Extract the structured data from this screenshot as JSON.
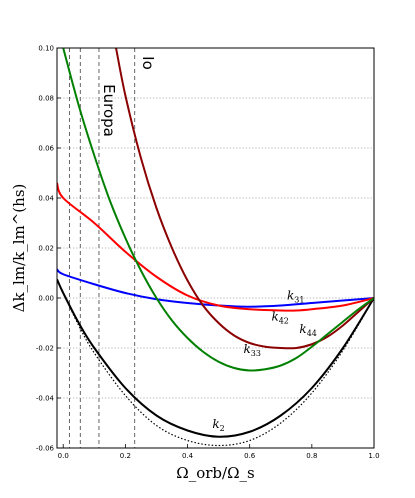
{
  "chart_data": {
    "type": "line",
    "xlabel": "Ω_orb/Ω_s",
    "ylabel": "Δk_lm/k_lm^(hs)",
    "xlim": [
      -0.02,
      1.0
    ],
    "ylim": [
      -0.06,
      0.1
    ],
    "x_ticks": [
      "0.0",
      "0.2",
      "0.4",
      "0.6",
      "0.8",
      "1.0"
    ],
    "y_ticks": [
      "0.10",
      "0.08",
      "0.06",
      "0.04",
      "0.02",
      "0.00",
      "-0.02",
      "-0.04",
      "-0.06"
    ],
    "grid": "horizontal dotted",
    "series": [
      {
        "name": "k2",
        "label_base": "k",
        "label_sub": "2",
        "color": "#000000",
        "style": "solid",
        "x": [
          -0.02,
          0.0,
          0.05,
          0.1,
          0.2,
          0.3,
          0.4,
          0.5,
          0.6,
          0.7,
          0.8,
          0.9,
          1.0
        ],
        "y": [
          0.0075,
          0.002,
          -0.01,
          -0.02,
          -0.036,
          -0.047,
          -0.053,
          -0.0555,
          -0.0535,
          -0.047,
          -0.036,
          -0.02,
          0.0
        ]
      },
      {
        "name": "k2 (dotted)",
        "color": "#000000",
        "style": "dotted",
        "x": [
          -0.02,
          0.0,
          0.05,
          0.1,
          0.2,
          0.3,
          0.4,
          0.5,
          0.6,
          0.7,
          0.8,
          0.9,
          1.0
        ],
        "y": [
          0.0075,
          0.002,
          -0.011,
          -0.022,
          -0.039,
          -0.051,
          -0.057,
          -0.059,
          -0.057,
          -0.05,
          -0.038,
          -0.021,
          0.0
        ]
      },
      {
        "name": "k31",
        "label_base": "k",
        "label_sub": "31",
        "color": "#0000ff",
        "style": "solid",
        "x": [
          -0.02,
          0.0,
          0.1,
          0.2,
          0.3,
          0.4,
          0.5,
          0.6,
          0.7,
          0.8,
          0.9,
          1.0
        ],
        "y": [
          0.0115,
          0.0095,
          0.0055,
          0.002,
          -0.0005,
          -0.002,
          -0.003,
          -0.0035,
          -0.003,
          -0.002,
          -0.001,
          0.0
        ]
      },
      {
        "name": "k42",
        "label_base": "k",
        "label_sub": "42",
        "color": "#ff0000",
        "style": "solid",
        "x": [
          -0.02,
          0.0,
          0.1,
          0.2,
          0.3,
          0.4,
          0.5,
          0.6,
          0.7,
          0.75,
          0.8,
          0.9,
          1.0
        ],
        "y": [
          0.046,
          0.04,
          0.03,
          0.0185,
          0.0085,
          0.001,
          -0.003,
          -0.0045,
          -0.005,
          -0.005,
          -0.0045,
          -0.003,
          0.0
        ]
      },
      {
        "name": "k44",
        "label_base": "k",
        "label_sub": "44",
        "color": "#8b0000",
        "style": "solid",
        "x": [
          0.17,
          0.2,
          0.25,
          0.3,
          0.35,
          0.4,
          0.45,
          0.5,
          0.55,
          0.6,
          0.65,
          0.7,
          0.75,
          0.8,
          0.85,
          0.9,
          0.95,
          1.0
        ],
        "y": [
          0.1,
          0.081,
          0.056,
          0.036,
          0.02,
          0.007,
          -0.003,
          -0.01,
          -0.015,
          -0.018,
          -0.0195,
          -0.02,
          -0.02,
          -0.0185,
          -0.0155,
          -0.011,
          -0.0055,
          0.0
        ]
      },
      {
        "name": "k33",
        "label_base": "k",
        "label_sub": "33",
        "color": "#008000",
        "style": "solid",
        "x": [
          0.0,
          0.05,
          0.1,
          0.15,
          0.2,
          0.25,
          0.3,
          0.35,
          0.4,
          0.45,
          0.5,
          0.55,
          0.6,
          0.65,
          0.7,
          0.75,
          0.8,
          0.85,
          0.9,
          0.95,
          1.0
        ],
        "y": [
          0.1,
          0.077,
          0.057,
          0.039,
          0.024,
          0.011,
          0.0,
          -0.009,
          -0.016,
          -0.0215,
          -0.0255,
          -0.028,
          -0.029,
          -0.0285,
          -0.027,
          -0.024,
          -0.0195,
          -0.0145,
          -0.0095,
          -0.0045,
          0.0
        ]
      }
    ],
    "vlines_x": [
      0.02,
      0.055,
      0.115,
      0.23
    ],
    "annotations": [
      {
        "text": "Europa",
        "x": 0.115,
        "y": 0.075
      },
      {
        "text": "Io",
        "x": 0.24,
        "y": 0.094
      }
    ],
    "label_positions": [
      {
        "series": "k2",
        "x": 0.48,
        "y": -0.052
      },
      {
        "series": "k31",
        "x": 0.72,
        "y": -0.0005
      },
      {
        "series": "k42",
        "x": 0.67,
        "y": -0.009
      },
      {
        "series": "k44",
        "x": 0.76,
        "y": -0.014
      },
      {
        "series": "k33",
        "x": 0.58,
        "y": -0.022
      }
    ]
  }
}
